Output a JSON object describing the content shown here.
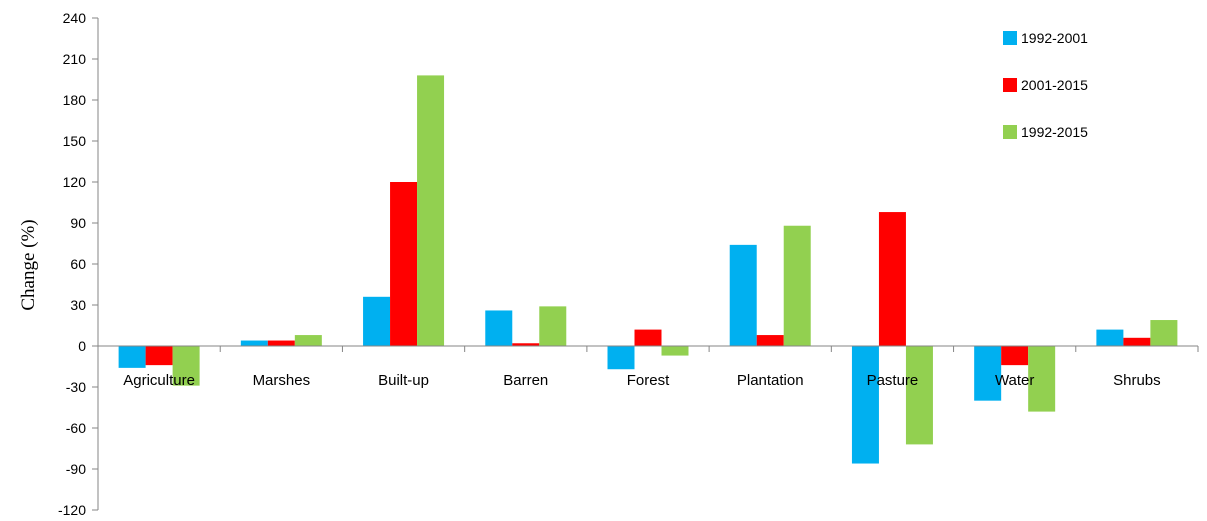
{
  "chart_data": {
    "type": "bar",
    "title": "",
    "xlabel": "",
    "ylabel": "Change (%)",
    "ylim": [
      -120,
      240
    ],
    "yticks": [
      -120,
      -90,
      -60,
      -30,
      0,
      30,
      60,
      90,
      120,
      150,
      180,
      210,
      240
    ],
    "grid": false,
    "legend_position": "top-right",
    "categories": [
      "Agriculture",
      "Marshes",
      "Built-up",
      "Barren",
      "Forest",
      "Plantation",
      "Pasture",
      "Water",
      "Shrubs"
    ],
    "series": [
      {
        "name": "1992-2001",
        "color": "#00b0f0",
        "values": [
          -16,
          4,
          36,
          26,
          -17,
          74,
          -86,
          -40,
          12
        ]
      },
      {
        "name": "2001-2015",
        "color": "#ff0000",
        "values": [
          -14,
          4,
          120,
          2,
          12,
          8,
          98,
          -14,
          6
        ]
      },
      {
        "name": "1992-2015",
        "color": "#92d050",
        "values": [
          -29,
          8,
          198,
          29,
          -7,
          88,
          -72,
          -48,
          19
        ]
      }
    ]
  }
}
